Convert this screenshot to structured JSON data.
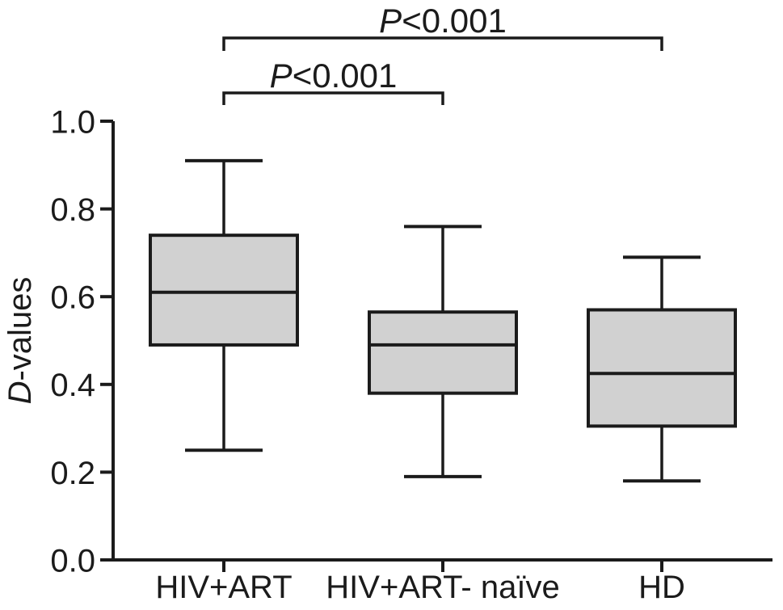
{
  "chart_data": {
    "type": "boxplot",
    "title": "",
    "ylabel": "D-values",
    "ylabel_italic_prefix": "D",
    "ylabel_rest": "-values",
    "xlabel": "",
    "categories": [
      "HIV+ART",
      "HIV+ART- naïve",
      "HD"
    ],
    "series": [
      {
        "name": "HIV+ART",
        "whisker_low": 0.25,
        "q1": 0.49,
        "median": 0.61,
        "q3": 0.74,
        "whisker_high": 0.91
      },
      {
        "name": "HIV+ART- naïve",
        "whisker_low": 0.19,
        "q1": 0.38,
        "median": 0.49,
        "q3": 0.565,
        "whisker_high": 0.76
      },
      {
        "name": "HD",
        "whisker_low": 0.18,
        "q1": 0.305,
        "median": 0.425,
        "q3": 0.57,
        "whisker_high": 0.69
      }
    ],
    "ylim": [
      0.0,
      1.0
    ],
    "yticks": [
      0.0,
      0.2,
      0.4,
      0.6,
      0.8,
      1.0
    ],
    "ytick_labels": [
      "0.0",
      "0.2",
      "0.4",
      "0.6",
      "0.8",
      "1.0"
    ],
    "grid": false,
    "legend": false,
    "colors": {
      "box_fill": "#d1d1d1",
      "line": "#1b1b1b",
      "text": "#1b1b1b",
      "background": "#ffffff"
    },
    "annotations": [
      {
        "label": "P<0.001",
        "label_italic_prefix": "P",
        "label_rest": "<0.001",
        "from_category": "HIV+ART",
        "to_category": "HD",
        "from": 0,
        "to": 2
      },
      {
        "label": "P<0.001",
        "label_italic_prefix": "P",
        "label_rest": "<0.001",
        "from_category": "HIV+ART",
        "to_category": "HIV+ART- naïve",
        "from": 0,
        "to": 1
      }
    ]
  }
}
